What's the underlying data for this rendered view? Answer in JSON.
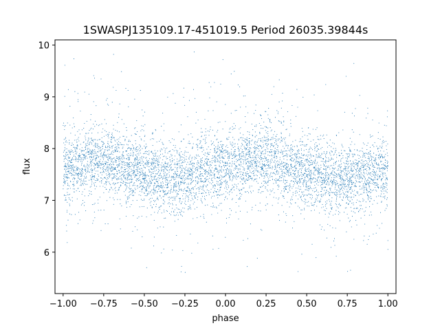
{
  "chart_data": {
    "type": "scatter",
    "title": "1SWASPJ135109.17-451019.5 Period 26035.39844s",
    "xlabel": "phase",
    "ylabel": "flux",
    "xlim": [
      -1.05,
      1.05
    ],
    "ylim": [
      5.2,
      10.1
    ],
    "xticks": [
      -1.0,
      -0.75,
      -0.5,
      -0.25,
      0.0,
      0.25,
      0.5,
      0.75,
      1.0
    ],
    "xtick_labels": [
      "−1.00",
      "−0.75",
      "−0.50",
      "−0.25",
      "0.00",
      "0.25",
      "0.50",
      "0.75",
      "1.00"
    ],
    "yticks": [
      6,
      7,
      8,
      9,
      10
    ],
    "ytick_labels": [
      "6",
      "7",
      "8",
      "9",
      "10"
    ],
    "grid": false,
    "marker_color": "#1f77b4",
    "phase_range": [
      -1.0,
      1.0
    ],
    "flux_profile": {
      "phase": [
        -1.0,
        -0.9,
        -0.8,
        -0.7,
        -0.6,
        -0.5,
        -0.4,
        -0.3,
        -0.2,
        -0.1,
        0.0,
        0.1,
        0.2,
        0.3,
        0.4,
        0.5,
        0.6,
        0.7,
        0.8,
        0.9,
        1.0
      ],
      "median_flux": [
        7.6,
        7.72,
        7.78,
        7.75,
        7.65,
        7.52,
        7.45,
        7.45,
        7.5,
        7.6,
        7.68,
        7.75,
        7.8,
        7.76,
        7.65,
        7.52,
        7.45,
        7.42,
        7.45,
        7.55,
        7.62
      ]
    },
    "flux_spread_sigma": 0.33,
    "flux_extent": [
      5.45,
      9.9
    ]
  }
}
